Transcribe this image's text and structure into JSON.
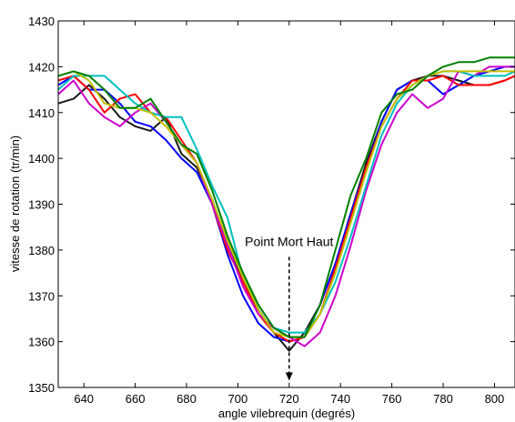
{
  "chart_data": {
    "type": "line",
    "title": "",
    "xlabel": "angle vilebrequin (degrés)",
    "ylabel": "vitesse de rotation (tr/min)",
    "xlim": [
      630,
      808
    ],
    "ylim": [
      1350,
      1430
    ],
    "xticks": [
      640,
      660,
      680,
      700,
      720,
      740,
      760,
      780,
      800
    ],
    "yticks": [
      1350,
      1360,
      1370,
      1380,
      1390,
      1400,
      1410,
      1420,
      1430
    ],
    "grid": false,
    "legend": "none",
    "x": [
      630,
      636,
      642,
      648,
      654,
      660,
      666,
      672,
      678,
      684,
      690,
      696,
      702,
      708,
      714,
      720,
      726,
      732,
      738,
      744,
      750,
      756,
      762,
      768,
      774,
      780,
      786,
      792,
      798,
      804,
      808
    ],
    "series": [
      {
        "color": "#1a1a1a",
        "values": [
          1412,
          1413,
          1416,
          1413,
          1409,
          1407,
          1406,
          1409,
          1401,
          1398,
          1391,
          1381,
          1373,
          1367,
          1362,
          1358,
          1362,
          1368,
          1377,
          1388,
          1399,
          1408,
          1415,
          1417,
          1418,
          1418,
          1417,
          1416,
          1416,
          1417,
          1418
        ]
      },
      {
        "color": "#0000ff",
        "values": [
          1416,
          1418,
          1415,
          1415,
          1412,
          1408,
          1407,
          1404,
          1400,
          1397,
          1390,
          1379,
          1370,
          1364,
          1361,
          1360,
          1361,
          1368,
          1377,
          1388,
          1398,
          1408,
          1415,
          1417,
          1417,
          1414,
          1416,
          1418,
          1419,
          1420,
          1420
        ]
      },
      {
        "color": "#ff0000",
        "values": [
          1417,
          1418,
          1415,
          1410,
          1413,
          1414,
          1410,
          1409,
          1404,
          1399,
          1390,
          1380,
          1373,
          1366,
          1362,
          1360,
          1361,
          1366,
          1376,
          1387,
          1398,
          1407,
          1413,
          1417,
          1417,
          1418,
          1416,
          1416,
          1416,
          1417,
          1418
        ]
      },
      {
        "color": "#cc00cc",
        "values": [
          1414,
          1417,
          1412,
          1409,
          1407,
          1410,
          1412,
          1408,
          1403,
          1399,
          1390,
          1381,
          1372,
          1366,
          1363,
          1361,
          1359,
          1362,
          1370,
          1381,
          1393,
          1403,
          1410,
          1414,
          1411,
          1413,
          1419,
          1418,
          1420,
          1420,
          1420
        ]
      },
      {
        "color": "#00bfbf",
        "values": [
          1415,
          1418,
          1418,
          1418,
          1415,
          1412,
          1410,
          1409,
          1409,
          1402,
          1394,
          1387,
          1374,
          1368,
          1363,
          1362,
          1362,
          1366,
          1373,
          1383,
          1394,
          1405,
          1412,
          1416,
          1418,
          1419,
          1419,
          1418,
          1418,
          1418,
          1419
        ]
      },
      {
        "color": "#bfbf00",
        "values": [
          1418,
          1419,
          1417,
          1412,
          1411,
          1411,
          1410,
          1407,
          1403,
          1399,
          1391,
          1382,
          1374,
          1367,
          1362,
          1361,
          1361,
          1366,
          1375,
          1386,
          1397,
          1407,
          1413,
          1416,
          1418,
          1419,
          1419,
          1419,
          1419,
          1419,
          1419
        ]
      },
      {
        "color": "#008000",
        "values": [
          1418,
          1419,
          1418,
          1415,
          1411,
          1411,
          1413,
          1408,
          1403,
          1401,
          1393,
          1383,
          1375,
          1368,
          1363,
          1361,
          1361,
          1368,
          1380,
          1392,
          1400,
          1410,
          1414,
          1415,
          1418,
          1420,
          1421,
          1421,
          1422,
          1422,
          1422
        ]
      }
    ],
    "annotations": [
      {
        "text": "Point Mort Haut",
        "x": 720,
        "y_from": 1378.5,
        "y_to": 1351.5
      }
    ]
  }
}
